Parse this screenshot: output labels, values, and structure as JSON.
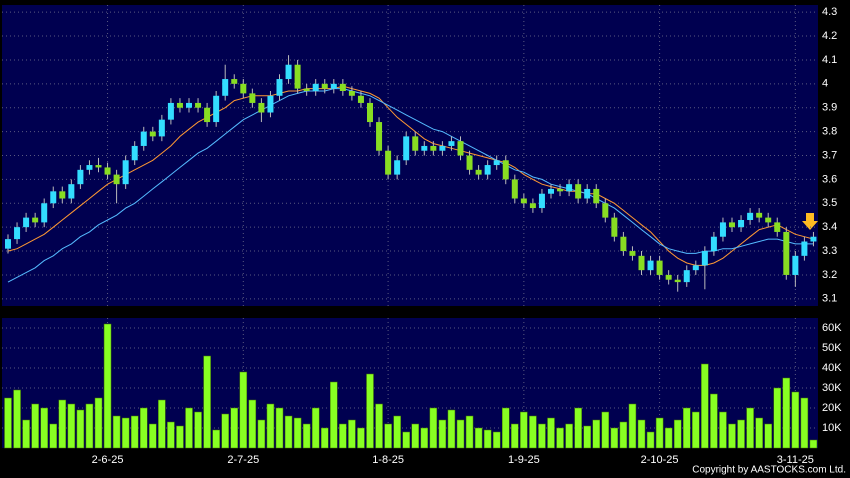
{
  "chart_data": [
    {
      "type": "candlestick",
      "up_color": "#33ddff",
      "down_color": "#88dd22",
      "open": [
        3.31,
        3.35,
        3.4,
        3.44,
        3.42,
        3.5,
        3.55,
        3.52,
        3.58,
        3.64,
        3.66,
        3.65,
        3.62,
        3.58,
        3.68,
        3.74,
        3.8,
        3.78,
        3.85,
        3.92,
        3.9,
        3.92,
        3.9,
        3.84,
        3.95,
        4.02,
        4.0,
        3.96,
        3.92,
        3.88,
        3.95,
        4.02,
        4.08,
        3.98,
        3.97,
        4.0,
        3.98,
        4.0,
        3.97,
        3.95,
        3.92,
        3.84,
        3.72,
        3.62,
        3.68,
        3.78,
        3.72,
        3.74,
        3.72,
        3.74,
        3.76,
        3.7,
        3.64,
        3.62,
        3.66,
        3.68,
        3.6,
        3.52,
        3.5,
        3.48,
        3.54,
        3.56,
        3.55,
        3.58,
        3.52,
        3.56,
        3.5,
        3.44,
        3.36,
        3.3,
        3.28,
        3.22,
        3.26,
        3.2,
        3.18,
        3.17,
        3.22,
        3.24,
        3.3,
        3.36,
        3.42,
        3.4,
        3.43,
        3.46,
        3.44,
        3.42,
        3.38,
        3.2,
        3.28,
        3.34
      ],
      "high": [
        3.37,
        3.42,
        3.46,
        3.46,
        3.52,
        3.57,
        3.57,
        3.6,
        3.66,
        3.68,
        3.69,
        3.67,
        3.64,
        3.7,
        3.76,
        3.82,
        3.82,
        3.87,
        3.94,
        3.94,
        3.94,
        3.94,
        3.92,
        3.97,
        4.08,
        4.04,
        4.02,
        3.98,
        3.94,
        3.97,
        4.04,
        4.12,
        4.1,
        4.0,
        4.02,
        4.02,
        4.02,
        4.02,
        3.99,
        3.97,
        3.94,
        3.86,
        3.74,
        3.7,
        3.8,
        3.8,
        3.76,
        3.76,
        3.76,
        3.78,
        3.78,
        3.72,
        3.66,
        3.68,
        3.7,
        3.7,
        3.62,
        3.54,
        3.52,
        3.56,
        3.58,
        3.58,
        3.6,
        3.6,
        3.58,
        3.58,
        3.52,
        3.46,
        3.38,
        3.32,
        3.3,
        3.28,
        3.28,
        3.22,
        3.2,
        3.24,
        3.26,
        3.32,
        3.38,
        3.44,
        3.44,
        3.45,
        3.48,
        3.48,
        3.46,
        3.44,
        3.4,
        3.3,
        3.36,
        3.38
      ],
      "low": [
        3.29,
        3.33,
        3.38,
        3.4,
        3.4,
        3.48,
        3.5,
        3.5,
        3.56,
        3.62,
        3.63,
        3.6,
        3.5,
        3.56,
        3.66,
        3.72,
        3.76,
        3.76,
        3.83,
        3.88,
        3.88,
        3.88,
        3.82,
        3.82,
        3.93,
        3.98,
        3.94,
        3.9,
        3.84,
        3.86,
        3.93,
        4.0,
        3.96,
        3.95,
        3.95,
        3.96,
        3.96,
        3.95,
        3.93,
        3.9,
        3.82,
        3.7,
        3.6,
        3.6,
        3.66,
        3.7,
        3.7,
        3.7,
        3.7,
        3.72,
        3.68,
        3.62,
        3.6,
        3.6,
        3.64,
        3.58,
        3.5,
        3.48,
        3.46,
        3.46,
        3.52,
        3.53,
        3.53,
        3.5,
        3.5,
        3.48,
        3.42,
        3.34,
        3.28,
        3.26,
        3.2,
        3.2,
        3.18,
        3.16,
        3.13,
        3.15,
        3.2,
        3.14,
        3.28,
        3.34,
        3.38,
        3.38,
        3.41,
        3.42,
        3.4,
        3.36,
        3.18,
        3.15,
        3.26,
        3.32
      ],
      "close": [
        3.35,
        3.4,
        3.44,
        3.42,
        3.5,
        3.55,
        3.52,
        3.58,
        3.64,
        3.66,
        3.65,
        3.62,
        3.58,
        3.68,
        3.74,
        3.8,
        3.78,
        3.85,
        3.92,
        3.9,
        3.92,
        3.9,
        3.84,
        3.95,
        4.02,
        4.0,
        3.96,
        3.92,
        3.88,
        3.95,
        4.02,
        4.08,
        3.98,
        3.97,
        4.0,
        3.98,
        4.0,
        3.97,
        3.95,
        3.92,
        3.84,
        3.72,
        3.62,
        3.68,
        3.78,
        3.72,
        3.74,
        3.72,
        3.74,
        3.76,
        3.7,
        3.64,
        3.62,
        3.66,
        3.68,
        3.6,
        3.52,
        3.5,
        3.48,
        3.54,
        3.56,
        3.55,
        3.58,
        3.52,
        3.56,
        3.5,
        3.44,
        3.36,
        3.3,
        3.28,
        3.22,
        3.26,
        3.2,
        3.18,
        3.17,
        3.22,
        3.24,
        3.3,
        3.36,
        3.42,
        3.4,
        3.43,
        3.46,
        3.44,
        3.42,
        3.38,
        3.2,
        3.28,
        3.34,
        3.36
      ],
      "series": [
        {
          "color": "#ff9933",
          "values": [
            3.3,
            3.31,
            3.33,
            3.35,
            3.37,
            3.4,
            3.43,
            3.46,
            3.49,
            3.52,
            3.55,
            3.58,
            3.6,
            3.62,
            3.64,
            3.66,
            3.68,
            3.71,
            3.74,
            3.78,
            3.81,
            3.84,
            3.86,
            3.88,
            3.9,
            3.93,
            3.94,
            3.95,
            3.95,
            3.95,
            3.96,
            3.97,
            3.97,
            3.98,
            3.98,
            3.98,
            3.98,
            3.99,
            3.98,
            3.97,
            3.96,
            3.94,
            3.9,
            3.86,
            3.83,
            3.8,
            3.77,
            3.75,
            3.74,
            3.73,
            3.72,
            3.71,
            3.7,
            3.69,
            3.68,
            3.67,
            3.65,
            3.62,
            3.6,
            3.58,
            3.57,
            3.56,
            3.55,
            3.55,
            3.54,
            3.54,
            3.52,
            3.5,
            3.47,
            3.44,
            3.41,
            3.38,
            3.34,
            3.3,
            3.27,
            3.25,
            3.24,
            3.24,
            3.25,
            3.27,
            3.3,
            3.33,
            3.36,
            3.39,
            3.4,
            3.41,
            3.39,
            3.37,
            3.36,
            3.35
          ]
        },
        {
          "color": "#55bbff",
          "values": [
            3.17,
            3.19,
            3.21,
            3.23,
            3.26,
            3.28,
            3.31,
            3.33,
            3.36,
            3.38,
            3.41,
            3.43,
            3.45,
            3.48,
            3.5,
            3.53,
            3.56,
            3.59,
            3.62,
            3.65,
            3.68,
            3.71,
            3.73,
            3.76,
            3.79,
            3.82,
            3.85,
            3.87,
            3.89,
            3.91,
            3.93,
            3.95,
            3.96,
            3.97,
            3.97,
            3.97,
            3.98,
            3.98,
            3.97,
            3.96,
            3.95,
            3.93,
            3.91,
            3.89,
            3.87,
            3.85,
            3.83,
            3.81,
            3.8,
            3.78,
            3.76,
            3.74,
            3.72,
            3.7,
            3.68,
            3.66,
            3.64,
            3.63,
            3.61,
            3.6,
            3.58,
            3.57,
            3.56,
            3.55,
            3.54,
            3.52,
            3.5,
            3.48,
            3.45,
            3.42,
            3.39,
            3.36,
            3.33,
            3.31,
            3.3,
            3.29,
            3.29,
            3.3,
            3.3,
            3.31,
            3.31,
            3.32,
            3.33,
            3.34,
            3.35,
            3.35,
            3.34,
            3.33,
            3.33,
            3.33
          ]
        }
      ],
      "ylim": [
        3.07,
        4.33
      ],
      "yticks": [
        3.1,
        3.2,
        3.3,
        3.4,
        3.5,
        3.6,
        3.7,
        3.8,
        3.9,
        4,
        4.1,
        4.2,
        4.3
      ],
      "grid": true
    },
    {
      "type": "bar",
      "color": "#88ff22",
      "categories": [
        null,
        null,
        null,
        null,
        null,
        null,
        null,
        null,
        null,
        null,
        null,
        "2-6-25",
        null,
        null,
        null,
        null,
        null,
        null,
        null,
        null,
        null,
        null,
        null,
        null,
        null,
        null,
        "2-7-25",
        null,
        null,
        null,
        null,
        null,
        null,
        null,
        null,
        null,
        null,
        null,
        null,
        null,
        null,
        null,
        "1-8-25",
        null,
        null,
        null,
        null,
        null,
        null,
        null,
        null,
        null,
        null,
        null,
        null,
        null,
        null,
        "1-9-25",
        null,
        null,
        null,
        null,
        null,
        null,
        null,
        null,
        null,
        null,
        null,
        null,
        null,
        null,
        "2-10-25",
        null,
        null,
        null,
        null,
        null,
        null,
        null,
        null,
        null,
        null,
        null,
        null,
        null,
        null,
        "3-11-25",
        null,
        null
      ],
      "values": [
        25000,
        29000,
        14000,
        22000,
        20000,
        12000,
        24000,
        22000,
        19000,
        22000,
        25000,
        62000,
        16000,
        15000,
        16000,
        20000,
        12000,
        24000,
        13000,
        11000,
        20000,
        18000,
        46000,
        9000,
        17000,
        20000,
        38000,
        24000,
        14000,
        22000,
        20000,
        16000,
        15000,
        12000,
        20000,
        10000,
        33000,
        12000,
        14000,
        10000,
        37000,
        22000,
        12000,
        16000,
        8000,
        12000,
        10000,
        20000,
        14000,
        19000,
        14000,
        16000,
        10000,
        9000,
        8000,
        20000,
        12000,
        18000,
        16000,
        12000,
        15000,
        10000,
        12000,
        20000,
        11000,
        14000,
        18000,
        10000,
        13000,
        22000,
        14000,
        8000,
        15000,
        10000,
        14000,
        20000,
        18000,
        42000,
        27000,
        18000,
        12000,
        14000,
        20000,
        15000,
        12000,
        30000,
        35000,
        28000,
        25000,
        4000
      ],
      "ylim": [
        0,
        65000
      ],
      "yticks": [
        {
          "value": 10000,
          "label": "10K"
        },
        {
          "value": 20000,
          "label": "20K"
        },
        {
          "value": 30000,
          "label": "30K"
        },
        {
          "value": 40000,
          "label": "40K"
        },
        {
          "value": 50000,
          "label": "50K"
        },
        {
          "value": 60000,
          "label": "60K"
        }
      ],
      "grid": true
    }
  ],
  "footer": "Copyright by AASTOCKS.com Ltd."
}
